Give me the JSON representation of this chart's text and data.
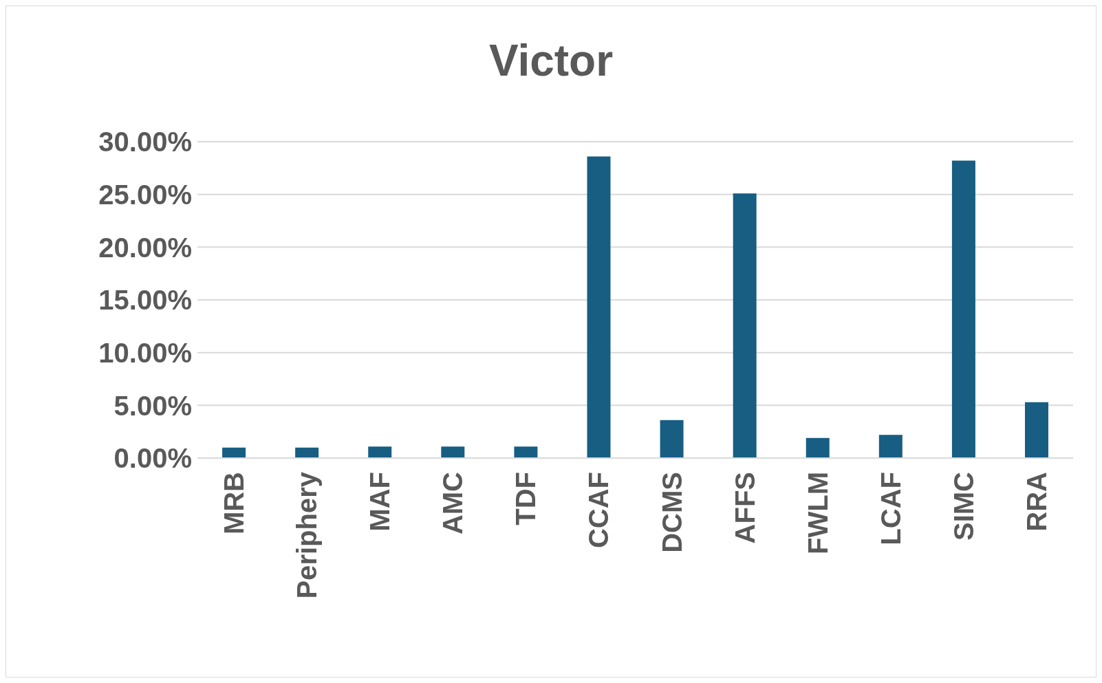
{
  "chart_data": {
    "type": "bar",
    "title": "Victor",
    "categories": [
      "MRB",
      "Periphery",
      "MAF",
      "AMC",
      "TDF",
      "CCAF",
      "DCMS",
      "AFFS",
      "FWLM",
      "LCAF",
      "SIMC",
      "RRA"
    ],
    "values": [
      1.0,
      1.0,
      1.1,
      1.1,
      1.1,
      28.6,
      3.6,
      25.1,
      1.9,
      2.2,
      28.2,
      5.3
    ],
    "color": "#175e82",
    "ylim": [
      0,
      30
    ],
    "yticks": [
      {
        "value": 0,
        "label": "0.00%"
      },
      {
        "value": 5,
        "label": "5.00%"
      },
      {
        "value": 10,
        "label": "10.00%"
      },
      {
        "value": 15,
        "label": "15.00%"
      },
      {
        "value": 20,
        "label": "20.00%"
      },
      {
        "value": 25,
        "label": "25.00%"
      },
      {
        "value": 30,
        "label": "30.00%"
      }
    ],
    "grid": "y",
    "legend": false
  }
}
